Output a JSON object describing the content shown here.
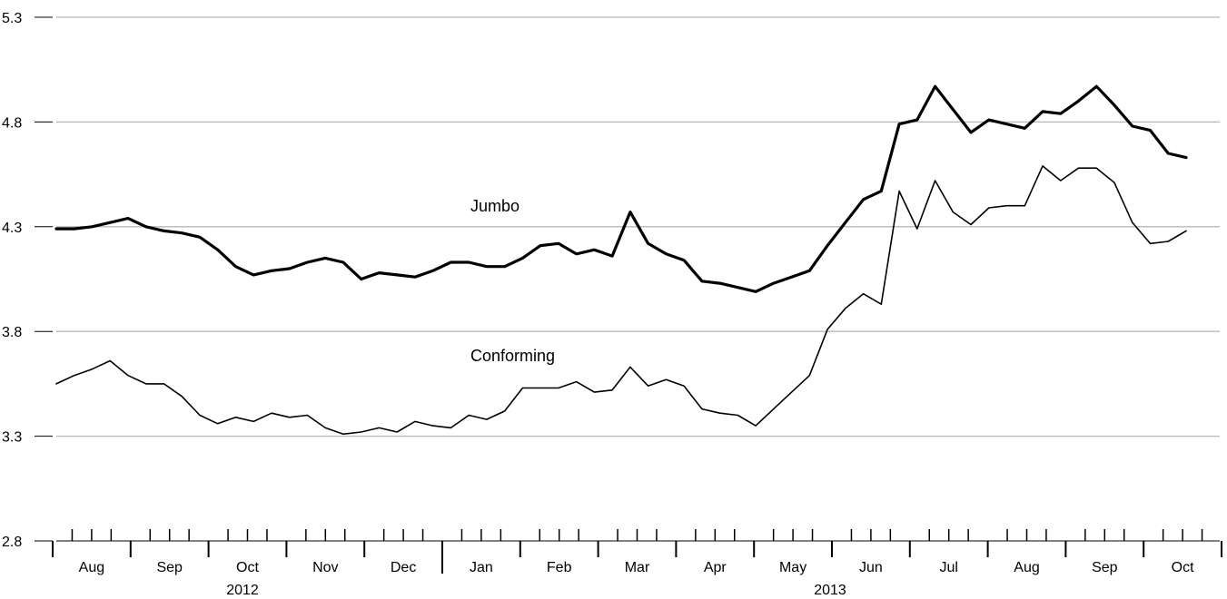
{
  "chart_data": {
    "type": "line",
    "title": "",
    "xlabel": "",
    "ylabel": "",
    "ylim": [
      2.8,
      5.3
    ],
    "yticks": [
      "2.8",
      "3.3",
      "3.8",
      "4.3",
      "4.8",
      "5.3"
    ],
    "grid": "horizontal",
    "month_labels": [
      "Aug",
      "Sep",
      "Oct",
      "Nov",
      "Dec",
      "Jan",
      "Feb",
      "Mar",
      "Apr",
      "May",
      "Jun",
      "Jul",
      "Aug",
      "Sep",
      "Oct"
    ],
    "year_labels": [
      "2012",
      "2013"
    ],
    "series": [
      {
        "name": "Jumbo",
        "values": [
          4.29,
          4.29,
          4.3,
          4.32,
          4.34,
          4.3,
          4.28,
          4.27,
          4.25,
          4.19,
          4.11,
          4.07,
          4.09,
          4.1,
          4.13,
          4.15,
          4.13,
          4.05,
          4.08,
          4.07,
          4.06,
          4.09,
          4.13,
          4.13,
          4.11,
          4.11,
          4.15,
          4.21,
          4.22,
          4.17,
          4.19,
          4.16,
          4.37,
          4.22,
          4.17,
          4.14,
          4.04,
          4.03,
          4.01,
          3.99,
          4.03,
          4.06,
          4.09,
          4.21,
          4.32,
          4.43,
          4.47,
          4.79,
          4.81,
          4.97,
          4.86,
          4.75,
          4.81,
          4.79,
          4.77,
          4.85,
          4.84,
          4.9,
          4.97,
          4.88,
          4.78,
          4.76,
          4.65,
          4.63
        ]
      },
      {
        "name": "Conforming",
        "values": [
          3.55,
          3.59,
          3.62,
          3.66,
          3.59,
          3.55,
          3.55,
          3.49,
          3.4,
          3.36,
          3.39,
          3.37,
          3.41,
          3.39,
          3.4,
          3.34,
          3.31,
          3.32,
          3.34,
          3.32,
          3.37,
          3.35,
          3.34,
          3.4,
          3.38,
          3.42,
          3.53,
          3.53,
          3.53,
          3.56,
          3.51,
          3.52,
          3.63,
          3.54,
          3.57,
          3.54,
          3.43,
          3.41,
          3.4,
          3.35,
          3.43,
          3.51,
          3.59,
          3.81,
          3.91,
          3.98,
          3.93,
          4.47,
          4.29,
          4.52,
          4.37,
          4.31,
          4.39,
          4.4,
          4.4,
          4.59,
          4.52,
          4.58,
          4.58,
          4.51,
          4.32,
          4.22,
          4.23,
          4.28
        ]
      }
    ]
  }
}
